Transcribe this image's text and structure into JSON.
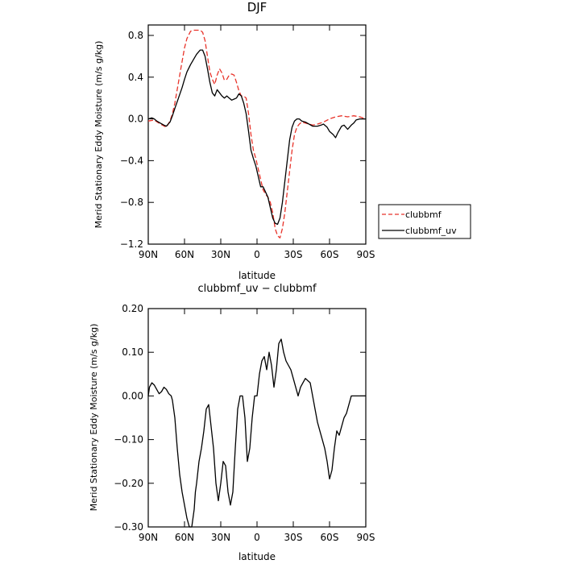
{
  "chart_data": [
    {
      "type": "line",
      "title": "DJF",
      "xlabel": "latitude",
      "ylabel": "Merid Stationary Eddy Moisture (m/s g/kg)",
      "xlim": [
        90,
        -90
      ],
      "ylim": [
        -1.2,
        0.9
      ],
      "x_ticks": [
        {
          "value": 90,
          "label": "90N"
        },
        {
          "value": 60,
          "label": "60N"
        },
        {
          "value": 30,
          "label": "30N"
        },
        {
          "value": 0,
          "label": "0"
        },
        {
          "value": -30,
          "label": "30S"
        },
        {
          "value": -60,
          "label": "60S"
        },
        {
          "value": -90,
          "label": "90S"
        }
      ],
      "y_ticks": [
        {
          "value": 0.8,
          "label": "0.8"
        },
        {
          "value": 0.4,
          "label": "0.4"
        },
        {
          "value": 0.0,
          "label": "0.0"
        },
        {
          "value": -0.4,
          "label": "−0.4"
        },
        {
          "value": -0.8,
          "label": "−0.8"
        },
        {
          "value": -1.2,
          "label": "−1.2"
        }
      ],
      "legend_position": "right",
      "series": [
        {
          "name": "clubbmf",
          "color": "#e8332a",
          "dash": "dashed",
          "x": [
            90,
            85,
            80,
            75,
            72,
            70,
            68,
            65,
            62,
            60,
            58,
            55,
            52,
            50,
            47,
            45,
            43,
            41,
            39,
            37,
            35,
            33,
            31,
            29,
            27,
            25,
            23,
            21,
            19,
            17,
            15,
            13,
            11,
            9,
            7,
            5,
            3,
            1,
            -1,
            -3,
            -5,
            -7,
            -9,
            -11,
            -13,
            -15,
            -17,
            -19,
            -21,
            -23,
            -25,
            -27,
            -29,
            -31,
            -33,
            -35,
            -37,
            -40,
            -43,
            -46,
            -50,
            -55,
            -60,
            -65,
            -70,
            -75,
            -80,
            -85,
            -90
          ],
          "y": [
            -0.02,
            -0.01,
            -0.05,
            -0.08,
            -0.02,
            0.05,
            0.15,
            0.35,
            0.55,
            0.68,
            0.77,
            0.84,
            0.85,
            0.85,
            0.85,
            0.83,
            0.75,
            0.6,
            0.45,
            0.38,
            0.33,
            0.42,
            0.48,
            0.44,
            0.37,
            0.38,
            0.42,
            0.43,
            0.42,
            0.35,
            0.27,
            0.22,
            0.22,
            0.2,
            0.05,
            -0.15,
            -0.3,
            -0.38,
            -0.48,
            -0.58,
            -0.68,
            -0.72,
            -0.75,
            -0.8,
            -0.9,
            -1.05,
            -1.12,
            -1.14,
            -1.05,
            -0.9,
            -0.7,
            -0.5,
            -0.3,
            -0.15,
            -0.08,
            -0.05,
            -0.03,
            -0.04,
            -0.05,
            -0.06,
            -0.05,
            -0.03,
            0.0,
            0.02,
            0.03,
            0.02,
            0.03,
            0.02,
            0.0
          ]
        },
        {
          "name": "clubbmf_uv",
          "color": "#000000",
          "dash": "solid",
          "x": [
            90,
            87,
            85,
            83,
            80,
            77,
            75,
            72,
            70,
            68,
            65,
            62,
            60,
            58,
            55,
            52,
            50,
            47,
            45,
            43,
            41,
            39,
            37,
            35,
            33,
            31,
            29,
            27,
            25,
            23,
            21,
            19,
            17,
            15,
            13,
            11,
            9,
            7,
            5,
            3,
            1,
            -1,
            -3,
            -5,
            -7,
            -9,
            -11,
            -13,
            -15,
            -17,
            -19,
            -21,
            -23,
            -25,
            -27,
            -29,
            -31,
            -33,
            -35,
            -37,
            -40,
            -43,
            -46,
            -50,
            -53,
            -55,
            -58,
            -60,
            -63,
            -65,
            -67,
            -70,
            -72,
            -75,
            -78,
            -80,
            -82,
            -85,
            -88,
            -90
          ],
          "y": [
            0.0,
            0.01,
            0.0,
            -0.02,
            -0.04,
            -0.06,
            -0.07,
            -0.03,
            0.03,
            0.1,
            0.2,
            0.3,
            0.38,
            0.45,
            0.52,
            0.58,
            0.62,
            0.66,
            0.66,
            0.6,
            0.48,
            0.35,
            0.25,
            0.22,
            0.28,
            0.25,
            0.22,
            0.2,
            0.22,
            0.2,
            0.18,
            0.19,
            0.2,
            0.24,
            0.22,
            0.15,
            0.05,
            -0.12,
            -0.3,
            -0.38,
            -0.45,
            -0.55,
            -0.65,
            -0.65,
            -0.7,
            -0.75,
            -0.85,
            -0.95,
            -1.0,
            -1.01,
            -0.95,
            -0.8,
            -0.6,
            -0.4,
            -0.2,
            -0.08,
            -0.02,
            0.0,
            0.0,
            -0.02,
            -0.03,
            -0.05,
            -0.07,
            -0.07,
            -0.06,
            -0.05,
            -0.08,
            -0.12,
            -0.15,
            -0.18,
            -0.13,
            -0.07,
            -0.06,
            -0.1,
            -0.06,
            -0.04,
            -0.01,
            0.0,
            0.0,
            0.0
          ]
        }
      ]
    },
    {
      "type": "line",
      "title": "clubbmf_uv − clubbmf",
      "xlabel": "latitude",
      "ylabel": "Merid Stationary Eddy Moisture (m/s g/kg)",
      "xlim": [
        90,
        -90
      ],
      "ylim": [
        -0.3,
        0.2
      ],
      "x_ticks": [
        {
          "value": 90,
          "label": "90N"
        },
        {
          "value": 60,
          "label": "60N"
        },
        {
          "value": 30,
          "label": "30N"
        },
        {
          "value": 0,
          "label": "0"
        },
        {
          "value": -30,
          "label": "30S"
        },
        {
          "value": -60,
          "label": "60S"
        },
        {
          "value": -90,
          "label": "90S"
        }
      ],
      "y_ticks": [
        {
          "value": 0.2,
          "label": "0.20"
        },
        {
          "value": 0.1,
          "label": "0.10"
        },
        {
          "value": 0.0,
          "label": "0.00"
        },
        {
          "value": -0.1,
          "label": "−0.10"
        },
        {
          "value": -0.2,
          "label": "−0.20"
        },
        {
          "value": -0.3,
          "label": "−0.30"
        }
      ],
      "series": [
        {
          "color": "#000000",
          "dash": "solid",
          "x": [
            90,
            89,
            87,
            85,
            83,
            81,
            79,
            77,
            75,
            73,
            71,
            70,
            68,
            66,
            64,
            62,
            60,
            58,
            56,
            54,
            52,
            51,
            50,
            48,
            46,
            44,
            42,
            40,
            38,
            36,
            34,
            32,
            30,
            28,
            26,
            24,
            22,
            20,
            18,
            16,
            14,
            12,
            10,
            8,
            6,
            4,
            2,
            0,
            -2,
            -4,
            -6,
            -8,
            -10,
            -12,
            -14,
            -16,
            -18,
            -20,
            -22,
            -24,
            -26,
            -28,
            -30,
            -32,
            -34,
            -36,
            -38,
            -40,
            -42,
            -44,
            -46,
            -48,
            -50,
            -52,
            -54,
            -56,
            -58,
            -60,
            -62,
            -64,
            -66,
            -68,
            -70,
            -72,
            -74,
            -76,
            -78,
            -80,
            -82,
            -84,
            -86,
            -88,
            -90
          ],
          "y": [
            0.0,
            0.02,
            0.03,
            0.025,
            0.015,
            0.005,
            0.01,
            0.02,
            0.015,
            0.005,
            0.0,
            -0.01,
            -0.05,
            -0.12,
            -0.18,
            -0.22,
            -0.25,
            -0.28,
            -0.3,
            -0.3,
            -0.26,
            -0.22,
            -0.2,
            -0.15,
            -0.12,
            -0.08,
            -0.03,
            -0.02,
            -0.07,
            -0.12,
            -0.2,
            -0.24,
            -0.2,
            -0.15,
            -0.16,
            -0.22,
            -0.25,
            -0.22,
            -0.12,
            -0.03,
            0.0,
            0.0,
            -0.05,
            -0.15,
            -0.12,
            -0.05,
            0.0,
            0.0,
            0.05,
            0.08,
            0.09,
            0.06,
            0.1,
            0.07,
            0.02,
            0.06,
            0.12,
            0.13,
            0.1,
            0.08,
            0.07,
            0.06,
            0.04,
            0.02,
            0.0,
            0.02,
            0.03,
            0.04,
            0.035,
            0.03,
            0.0,
            -0.03,
            -0.06,
            -0.08,
            -0.1,
            -0.12,
            -0.15,
            -0.19,
            -0.17,
            -0.12,
            -0.08,
            -0.09,
            -0.07,
            -0.05,
            -0.04,
            -0.02,
            0.0,
            0.0,
            0.0,
            0.0,
            0.0,
            0.0,
            0.0
          ]
        }
      ]
    }
  ]
}
